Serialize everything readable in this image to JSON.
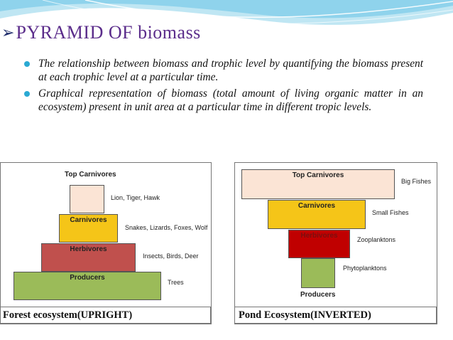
{
  "slide": {
    "title": "PYRAMID OF biomass",
    "bullets": [
      "The relationship between biomass and trophic level by quantifying the biomass present at each trophic level at a particular time.",
      "Graphical representation of biomass (total amount of living organic matter in an ecosystem) present in unit area at a particular time in different tropic levels."
    ]
  },
  "forest": {
    "caption": "Forest ecosystem(UPRIGHT)",
    "top_header": "Top Carnivores",
    "levels": [
      {
        "name": "",
        "example": "Lion, Tiger, Hawk",
        "color": "#fbe4d5"
      },
      {
        "name": "Carnivores",
        "example": "Snakes, Lizards, Foxes, Wolf",
        "color": "#f5c518"
      },
      {
        "name": "Herbivores",
        "example": "Insects, Birds, Deer",
        "color": "#c0504d"
      },
      {
        "name": "Producers",
        "example": "Trees",
        "color": "#9bbb59"
      }
    ]
  },
  "pond": {
    "caption": "Pond Ecosystem(INVERTED)",
    "bottom_header": "Producers",
    "levels": [
      {
        "name": "Top Carnivores",
        "example": "Big Fishes",
        "color": "#fbe4d5"
      },
      {
        "name": "Carnivores",
        "example": "Small Fishes",
        "color": "#f5c518"
      },
      {
        "name": "Herbivores",
        "example": "Zooplanktons",
        "color": "#c00000"
      },
      {
        "name": "",
        "example": "Phytoplanktons",
        "color": "#9bbb59"
      }
    ]
  },
  "colors": {
    "title": "#5b2d8b",
    "bullet": "#2aa9d3",
    "wave": "#6ec6e6"
  }
}
